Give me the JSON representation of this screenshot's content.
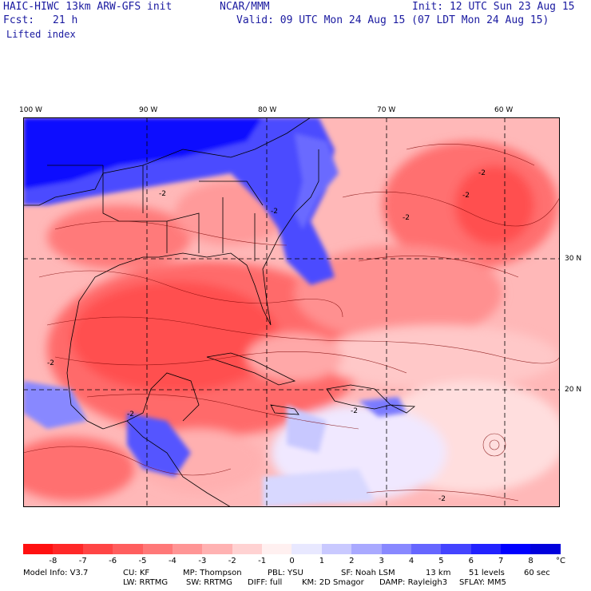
{
  "header": {
    "title_left": "HAIC-HIWC 13km ARW-GFS init",
    "title_center": "NCAR/MMM",
    "init": "Init: 12 UTC Sun 23 Aug 15",
    "fcst_label": "Fcst:",
    "fcst_value": "21 h",
    "valid": "Valid: 09 UTC Mon 24 Aug 15 (07 LDT Mon 24 Aug 15)",
    "field": "Lifted index"
  },
  "map": {
    "lon_labels": [
      "100 W",
      "90 W",
      "80 W",
      "70 W",
      "60 W"
    ],
    "lat_labels": [
      "30 N",
      "20 N"
    ],
    "contour_labels": [
      "-2",
      "-2",
      "-2",
      "-2",
      "-2",
      "-2",
      "-2",
      "-2",
      "-2"
    ]
  },
  "legend": {
    "unit": "°C",
    "ticks": [
      "-8",
      "-7",
      "-6",
      "-5",
      "-4",
      "-3",
      "-2",
      "-1",
      "0",
      "1",
      "2",
      "3",
      "4",
      "5",
      "6",
      "7",
      "8"
    ],
    "colors": [
      "#ff1010",
      "#ff2828",
      "#ff4545",
      "#ff5e5e",
      "#ff7878",
      "#ff9595",
      "#ffb2b2",
      "#ffd2d2",
      "#fff0f0",
      "#e8e8ff",
      "#c9c9ff",
      "#a9a9ff",
      "#8888ff",
      "#6666ff",
      "#4444ff",
      "#2222ff",
      "#0000ff",
      "#0000dd"
    ]
  },
  "footer": {
    "line1": [
      "Model Info: V3.7",
      "CU: KF",
      "MP: Thompson",
      "PBL: YSU",
      "SF: Noah LSM",
      "13 km",
      "51 levels",
      "60 sec"
    ],
    "line2": [
      "LW: RRTMG",
      "SW: RRTMG",
      "DIFF: full",
      "KM: 2D Smagor",
      "DAMP: Rayleigh3",
      "SFLAY: MM5"
    ]
  }
}
